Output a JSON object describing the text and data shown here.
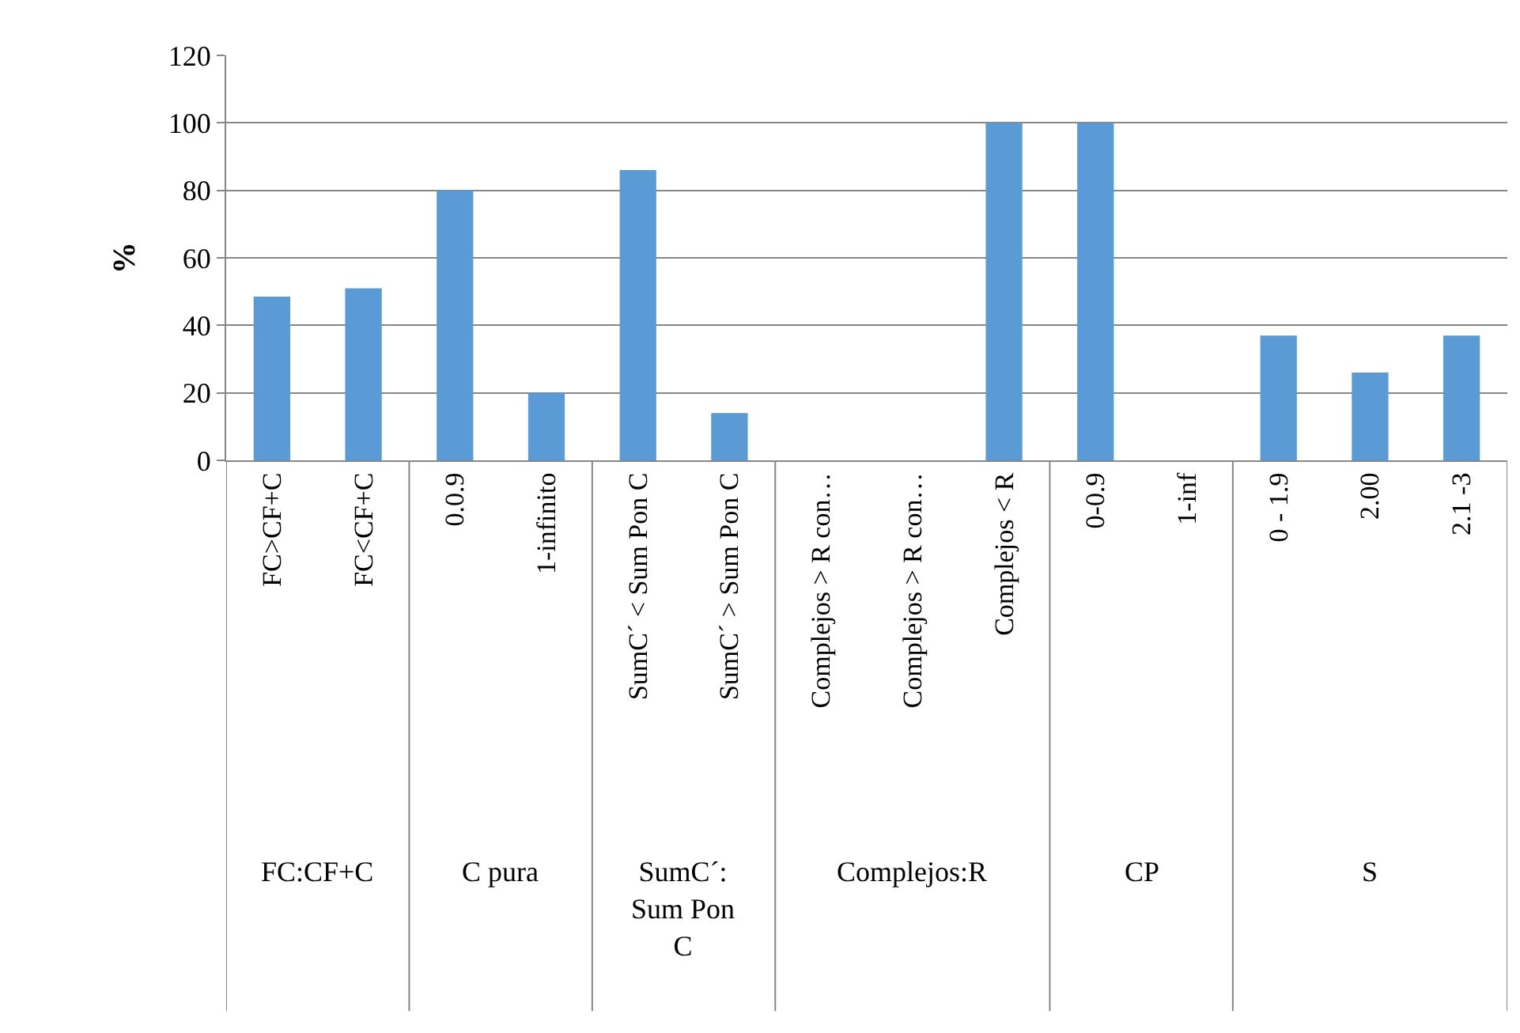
{
  "chart_data": {
    "type": "bar",
    "ylabel": "%",
    "categories": [
      "FC>CF+C",
      "FC<CF+C",
      "0.0.9",
      "1-infinito",
      "SumC´ < Sum Pon C",
      "SumC´ > Sum Pon C",
      "Complejos > R con…",
      "Complejos > R con…",
      "Complejos < R",
      "0-0.9",
      "1-inf",
      "0 - 1.9",
      "2.00",
      "2.1 -3"
    ],
    "values": [
      48.5,
      51,
      80,
      20,
      86,
      14,
      0,
      0,
      100,
      100,
      0,
      37,
      26,
      37
    ],
    "color": "#5b9bd5",
    "ylim": [
      0,
      120
    ],
    "yticks": [
      0,
      20,
      40,
      60,
      80,
      100,
      120
    ],
    "grid": "y",
    "legend": false,
    "annotations": [
      "FC:CF+C",
      "C pura",
      "SumC´: Sum Pon C",
      "Complejos:R",
      "CP",
      "S"
    ]
  }
}
